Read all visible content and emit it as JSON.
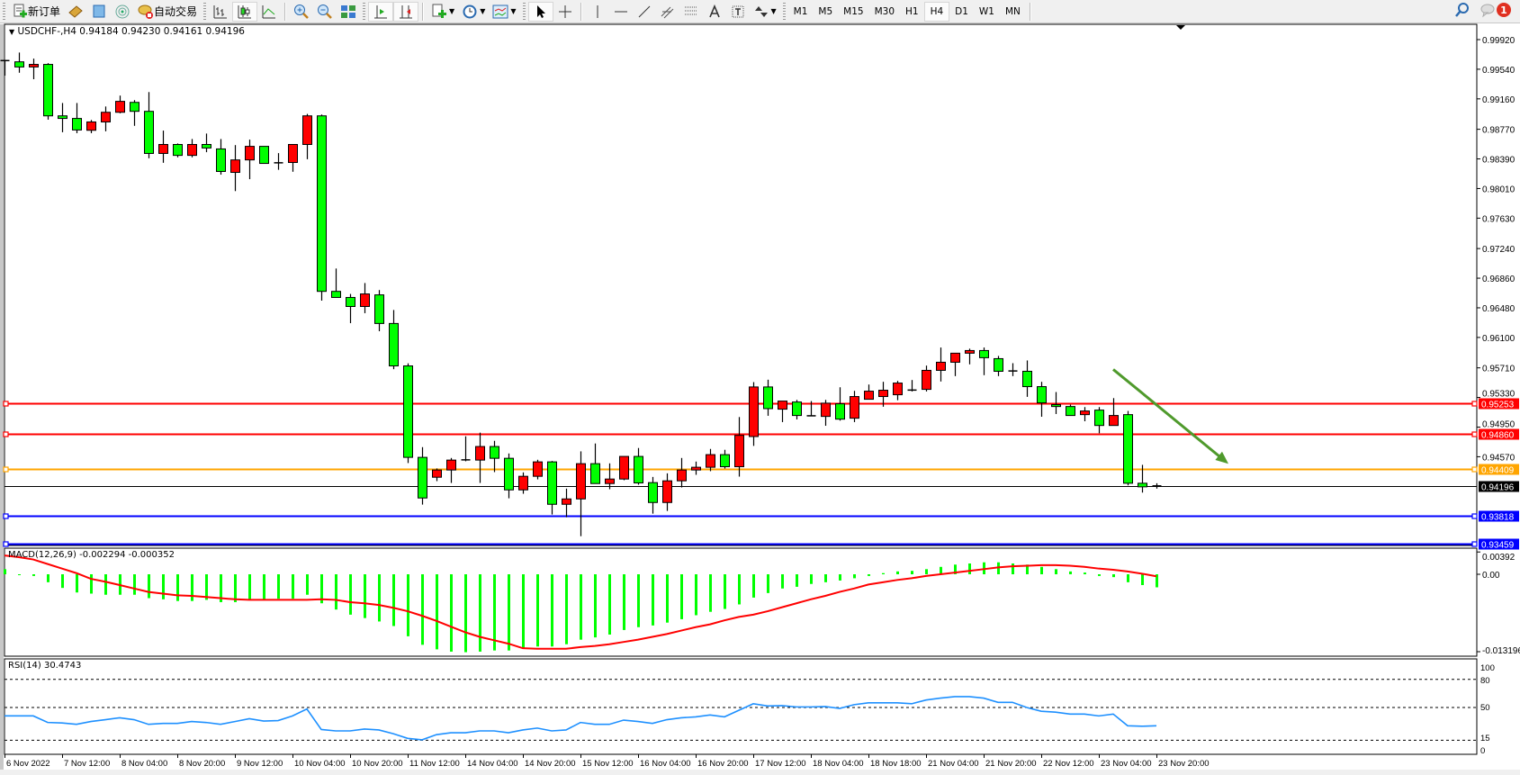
{
  "toolbar": {
    "new_order": "新订单",
    "auto_trading": "自动交易",
    "timeframes": [
      "M1",
      "M5",
      "M15",
      "M30",
      "H1",
      "H4",
      "D1",
      "W1",
      "MN"
    ],
    "active_timeframe": "H4",
    "notification_count": "1",
    "icons": [
      "new-order-icon",
      "market-watch-icon",
      "navigator-icon",
      "signals-icon",
      "auto-trading-icon",
      "bar-chart-icon",
      "candlestick-icon",
      "line-chart-icon",
      "zoom-in-icon",
      "zoom-out-icon",
      "tile-windows-icon",
      "auto-scroll-icon",
      "chart-shift-icon",
      "indicators-icon",
      "periods-icon",
      "templates-icon",
      "cursor-icon",
      "crosshair-icon",
      "vertical-line-icon",
      "horizontal-line-icon",
      "trendline-icon",
      "fibonacci-icon",
      "fibo-fan-icon",
      "text-icon",
      "text-label-icon",
      "arrows-icon",
      "search-icon",
      "notifications-icon"
    ]
  },
  "chart": {
    "header": "USDCHF-,H4  0.94184 0.94230 0.94161 0.94196",
    "macd_title": "MACD(12,26,9) -0.002294 -0.000352",
    "rsi_title": "RSI(14) 30.4743"
  },
  "chart_data": {
    "type": "candlestick",
    "symbol": "USDCHF-",
    "timeframe": "H4",
    "price_ticks": [
      "0.99920",
      "0.99540",
      "0.99160",
      "0.98770",
      "0.98390",
      "0.98010",
      "0.97630",
      "0.97240",
      "0.96860",
      "0.96480",
      "0.96100",
      "0.95710",
      "0.95330",
      "0.94950",
      "0.94570"
    ],
    "time_labels": [
      "6 Nov 2022",
      "7 Nov 12:00",
      "8 Nov 04:00",
      "8 Nov 20:00",
      "9 Nov 12:00",
      "10 Nov 04:00",
      "10 Nov 20:00",
      "11 Nov 12:00",
      "14 Nov 04:00",
      "14 Nov 20:00",
      "15 Nov 12:00",
      "16 Nov 04:00",
      "16 Nov 20:00",
      "17 Nov 12:00",
      "18 Nov 04:00",
      "18 Nov 18:00",
      "21 Nov 04:00",
      "21 Nov 20:00",
      "22 Nov 12:00",
      "23 Nov 04:00",
      "23 Nov 20:00"
    ],
    "bid": {
      "price": "0.94196",
      "color": "#000000"
    },
    "hlines": [
      {
        "price": "0.95253",
        "color": "#ff0000"
      },
      {
        "price": "0.94860",
        "color": "#ff0000"
      },
      {
        "price": "0.94409",
        "color": "#ffa500"
      },
      {
        "price": "0.93818",
        "color": "#0000ff"
      },
      {
        "price": "0.93459",
        "color": "#0000ff"
      }
    ],
    "arrow": {
      "color": "#4f9a2c",
      "from": {
        "bar": 77,
        "price": 0.9569
      },
      "to": {
        "bar": 85,
        "price": 0.9448
      }
    },
    "up_color": "#ff0000",
    "down_color": "#00ff00",
    "candles_ohlc": [
      [
        0.9964,
        0.9966,
        0.99458,
        0.99651
      ],
      [
        0.99635,
        0.99754,
        0.99495,
        0.99569
      ],
      [
        0.99569,
        0.99676,
        0.99412,
        0.99602
      ],
      [
        0.99602,
        0.99618,
        0.98893,
        0.98942
      ],
      [
        0.98942,
        0.99107,
        0.98732,
        0.98909
      ],
      [
        0.98909,
        0.99107,
        0.9872,
        0.98761
      ],
      [
        0.98757,
        0.98889,
        0.9872,
        0.98864
      ],
      [
        0.98864,
        0.99062,
        0.98744,
        0.98988
      ],
      [
        0.98988,
        0.99202,
        0.98975,
        0.99128
      ],
      [
        0.99115,
        0.99144,
        0.98814,
        0.99
      ],
      [
        0.99,
        0.99247,
        0.98398,
        0.9846
      ],
      [
        0.9846,
        0.98753,
        0.9834,
        0.98575
      ],
      [
        0.98575,
        0.98588,
        0.9841,
        0.98435
      ],
      [
        0.98435,
        0.98645,
        0.9841,
        0.98575
      ],
      [
        0.98575,
        0.98715,
        0.98476,
        0.9853
      ],
      [
        0.98518,
        0.98645,
        0.98188,
        0.98229
      ],
      [
        0.98217,
        0.98567,
        0.97977,
        0.98377
      ],
      [
        0.98377,
        0.98637,
        0.9813,
        0.98551
      ],
      [
        0.98551,
        0.98551,
        0.98332,
        0.98332
      ],
      [
        0.9834,
        0.98464,
        0.9825,
        0.9834
      ],
      [
        0.98344,
        0.98575,
        0.98225,
        0.98575
      ],
      [
        0.98575,
        0.98967,
        0.98386,
        0.98942
      ],
      [
        0.98942,
        0.98959,
        0.96572,
        0.96691
      ],
      [
        0.96691,
        0.96984,
        0.96613,
        0.96613
      ],
      [
        0.96613,
        0.96658,
        0.96283,
        0.96497
      ],
      [
        0.96497,
        0.96798,
        0.96411,
        0.96658
      ],
      [
        0.96646,
        0.96708,
        0.9618,
        0.96279
      ],
      [
        0.96279,
        0.96452,
        0.95693,
        0.95735
      ],
      [
        0.95735,
        0.95768,
        0.94489,
        0.94562
      ],
      [
        0.94562,
        0.94693,
        0.93956,
        0.94041
      ],
      [
        0.94307,
        0.9442,
        0.94257,
        0.944
      ],
      [
        0.944,
        0.94554,
        0.94234,
        0.94527
      ],
      [
        0.94527,
        0.94832,
        0.94512,
        0.9453
      ],
      [
        0.94527,
        0.94879,
        0.94234,
        0.94701
      ],
      [
        0.94701,
        0.94774,
        0.94373,
        0.9455
      ],
      [
        0.9455,
        0.94612,
        0.94037,
        0.94145
      ],
      [
        0.94145,
        0.94369,
        0.94095,
        0.94319
      ],
      [
        0.94319,
        0.94531,
        0.9428,
        0.94504
      ],
      [
        0.94504,
        0.94516,
        0.93829,
        0.9396
      ],
      [
        0.9396,
        0.94161,
        0.93794,
        0.94029
      ],
      [
        0.94029,
        0.94639,
        0.93551,
        0.94481
      ],
      [
        0.94481,
        0.9474,
        0.94226,
        0.94226
      ],
      [
        0.94226,
        0.94485,
        0.94153,
        0.94284
      ],
      [
        0.94284,
        0.94574,
        0.94269,
        0.94574
      ],
      [
        0.94574,
        0.94682,
        0.94211,
        0.94234
      ],
      [
        0.94238,
        0.94311,
        0.9384,
        0.93983
      ],
      [
        0.93983,
        0.94357,
        0.93875,
        0.94261
      ],
      [
        0.94261,
        0.94554,
        0.94176,
        0.944
      ],
      [
        0.944,
        0.94508,
        0.94338,
        0.94435
      ],
      [
        0.94435,
        0.9467,
        0.94385,
        0.94597
      ],
      [
        0.94597,
        0.94659,
        0.94419,
        0.94442
      ],
      [
        0.94442,
        0.95079,
        0.94315,
        0.94844
      ],
      [
        0.94829,
        0.95527,
        0.94709,
        0.95465
      ],
      [
        0.95465,
        0.95558,
        0.95095,
        0.95187
      ],
      [
        0.9518,
        0.95284,
        0.95014,
        0.95284
      ],
      [
        0.95272,
        0.95299,
        0.95048,
        0.95099
      ],
      [
        0.95095,
        0.95284,
        0.95095,
        0.95095
      ],
      [
        0.95087,
        0.95299,
        0.94967,
        0.95257
      ],
      [
        0.95249,
        0.95461,
        0.95033,
        0.95052
      ],
      [
        0.95064,
        0.95415,
        0.95014,
        0.95342
      ],
      [
        0.95307,
        0.95496,
        0.95307,
        0.95411
      ],
      [
        0.95342,
        0.95531,
        0.95211,
        0.95423
      ],
      [
        0.95365,
        0.95543,
        0.95295,
        0.95515
      ],
      [
        0.95423,
        0.95554,
        0.95407,
        0.95425
      ],
      [
        0.95434,
        0.95739,
        0.95407,
        0.95678
      ],
      [
        0.95678,
        0.95971,
        0.95535,
        0.95782
      ],
      [
        0.95782,
        0.95898,
        0.95604,
        0.95898
      ],
      [
        0.95898,
        0.95956,
        0.95755,
        0.95932
      ],
      [
        0.95932,
        0.95971,
        0.95616,
        0.9584
      ],
      [
        0.95828,
        0.95863,
        0.95604,
        0.95666
      ],
      [
        0.9567,
        0.9577,
        0.95604,
        0.9567
      ],
      [
        0.95666,
        0.95805,
        0.95338,
        0.95469
      ],
      [
        0.95469,
        0.95531,
        0.95083,
        0.95261
      ],
      [
        0.95238,
        0.954,
        0.95118,
        0.95214
      ],
      [
        0.95214,
        0.95238,
        0.95099,
        0.95099
      ],
      [
        0.9511,
        0.95207,
        0.95025,
        0.95157
      ],
      [
        0.95168,
        0.95207,
        0.94871,
        0.94971
      ],
      [
        0.94971,
        0.95322,
        0.94971,
        0.95099
      ],
      [
        0.9511,
        0.95157,
        0.94203,
        0.9423
      ],
      [
        0.9423,
        0.94466,
        0.9411,
        0.94184
      ],
      [
        0.94184,
        0.9423,
        0.94161,
        0.94196
      ]
    ],
    "macd": {
      "ticks": [
        "0.00392",
        "0.00",
        "-0.013196"
      ],
      "hist_color": "#00ff00",
      "signal_color": "#ff0000",
      "histogram": [
        0.0009,
        0.0,
        -0.0003,
        -0.0014,
        -0.0024,
        -0.0032,
        -0.0034,
        -0.0036,
        -0.0036,
        -0.0036,
        -0.0042,
        -0.0044,
        -0.0047,
        -0.0047,
        -0.0045,
        -0.0049,
        -0.0049,
        -0.0045,
        -0.0044,
        -0.0043,
        -0.0043,
        -0.0036,
        -0.0051,
        -0.0062,
        -0.0071,
        -0.0077,
        -0.0083,
        -0.0091,
        -0.0109,
        -0.0124,
        -0.0132,
        -0.0136,
        -0.0137,
        -0.0136,
        -0.0134,
        -0.0134,
        -0.013,
        -0.0127,
        -0.0127,
        -0.0123,
        -0.0115,
        -0.0111,
        -0.0106,
        -0.0098,
        -0.0093,
        -0.009,
        -0.0085,
        -0.0079,
        -0.0072,
        -0.0066,
        -0.0061,
        -0.0053,
        -0.0041,
        -0.0033,
        -0.0025,
        -0.0022,
        -0.0017,
        -0.0014,
        -0.0011,
        -0.0007,
        -0.0003,
        0.0002,
        0.0005,
        0.0006,
        0.0009,
        0.0013,
        0.0017,
        0.0019,
        0.0021,
        0.0021,
        0.0019,
        0.0017,
        0.0013,
        0.0009,
        0.0005,
        0.0003,
        -0.0003,
        -0.0005,
        -0.0014,
        -0.0019,
        -0.002294
      ],
      "signal": [
        0.0033,
        0.003,
        0.0026,
        0.0018,
        0.001,
        0.0002,
        -0.0008,
        -0.0013,
        -0.0019,
        -0.0025,
        -0.0031,
        -0.0034,
        -0.0037,
        -0.0038,
        -0.004,
        -0.0042,
        -0.0044,
        -0.0045,
        -0.0045,
        -0.0045,
        -0.0045,
        -0.0045,
        -0.0044,
        -0.0045,
        -0.0049,
        -0.0051,
        -0.0054,
        -0.0059,
        -0.0065,
        -0.0073,
        -0.0082,
        -0.0092,
        -0.0102,
        -0.011,
        -0.0116,
        -0.0122,
        -0.013,
        -0.0131,
        -0.0131,
        -0.0131,
        -0.0128,
        -0.0126,
        -0.0123,
        -0.0119,
        -0.0115,
        -0.011,
        -0.0105,
        -0.0099,
        -0.0093,
        -0.0088,
        -0.0081,
        -0.0075,
        -0.0071,
        -0.0065,
        -0.0058,
        -0.0051,
        -0.0044,
        -0.0038,
        -0.0031,
        -0.0025,
        -0.0018,
        -0.0014,
        -0.001,
        -0.0007,
        -0.0003,
        0.0,
        0.0003,
        0.0006,
        0.0009,
        0.0012,
        0.0014,
        0.0015,
        0.0016,
        0.0016,
        0.0015,
        0.0013,
        0.001,
        0.0008,
        0.0005,
        0.0001,
        -0.000352
      ]
    },
    "rsi": {
      "ticks": [
        "100",
        "80",
        "50",
        "15",
        "0"
      ],
      "levels": [
        80,
        50,
        15
      ],
      "color": "#1e90ff",
      "values": [
        41,
        41,
        41,
        34,
        33.5,
        32,
        35,
        37,
        39,
        37,
        32,
        33,
        33,
        35,
        34,
        32,
        35,
        38,
        35.5,
        36,
        41,
        48.4,
        26.5,
        25,
        25,
        27,
        26,
        22,
        17,
        15.5,
        21,
        23,
        23,
        25,
        25,
        23,
        26,
        28,
        25,
        26,
        34,
        32,
        32,
        36.5,
        35,
        33,
        37,
        39,
        40,
        42,
        40,
        47,
        54,
        51.6,
        52,
        50.6,
        50.6,
        51,
        49,
        53,
        55,
        55,
        55,
        54,
        58,
        60,
        61.6,
        61.6,
        60,
        55.5,
        55.5,
        50,
        46,
        45,
        43,
        43,
        41,
        43,
        30.5,
        30,
        30.4743
      ]
    }
  }
}
